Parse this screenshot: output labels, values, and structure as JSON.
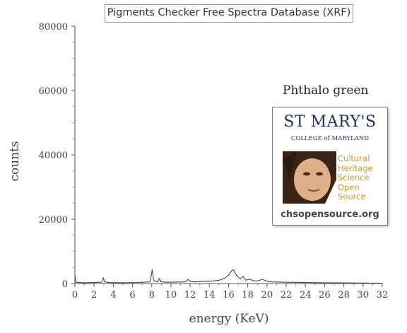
{
  "chart_data": {
    "type": "line",
    "title": "Pigments Checker Free Spectra Database (XRF)",
    "xlabel": "energy (KeV)",
    "ylabel": "counts",
    "xlim": [
      0,
      32
    ],
    "ylim": [
      0,
      80000
    ],
    "x_ticks": [
      "0",
      "2",
      "4",
      "6",
      "8",
      "10",
      "12",
      "14",
      "16",
      "18",
      "20",
      "22",
      "24",
      "26",
      "28",
      "30",
      "32"
    ],
    "y_ticks": [
      "0",
      "20000",
      "40000",
      "60000",
      "80000"
    ],
    "annotation": "Phthalo green",
    "grid": false,
    "series": [
      {
        "color": "#444444",
        "points": [
          [
            0.0,
            2500
          ],
          [
            0.1,
            400
          ],
          [
            0.5,
            300
          ],
          [
            1.0,
            250
          ],
          [
            2.0,
            300
          ],
          [
            2.8,
            400
          ],
          [
            2.95,
            1800
          ],
          [
            3.1,
            500
          ],
          [
            3.5,
            300
          ],
          [
            5.0,
            250
          ],
          [
            6.5,
            300
          ],
          [
            7.8,
            500
          ],
          [
            7.9,
            1500
          ],
          [
            8.05,
            4300
          ],
          [
            8.2,
            900
          ],
          [
            8.6,
            500
          ],
          [
            8.8,
            1600
          ],
          [
            8.95,
            600
          ],
          [
            9.5,
            400
          ],
          [
            11.5,
            500
          ],
          [
            11.8,
            1300
          ],
          [
            12.0,
            700
          ],
          [
            12.4,
            500
          ],
          [
            13.0,
            600
          ],
          [
            14.0,
            700
          ],
          [
            15.0,
            1000
          ],
          [
            15.6,
            1600
          ],
          [
            16.0,
            2600
          ],
          [
            16.3,
            3900
          ],
          [
            16.5,
            4300
          ],
          [
            16.8,
            2600
          ],
          [
            17.2,
            1400
          ],
          [
            17.5,
            2200
          ],
          [
            17.8,
            1000
          ],
          [
            18.2,
            1400
          ],
          [
            18.5,
            900
          ],
          [
            19.0,
            800
          ],
          [
            19.5,
            1300
          ],
          [
            20.0,
            700
          ],
          [
            20.5,
            500
          ],
          [
            22.0,
            400
          ],
          [
            24.0,
            300
          ],
          [
            26.0,
            250
          ],
          [
            28.0,
            200
          ],
          [
            30.0,
            150
          ],
          [
            32.0,
            100
          ]
        ]
      }
    ]
  },
  "logo": {
    "name": "ST MARY'S",
    "subtitle": "COLLEGE of MARYLAND",
    "words": [
      "Cultural",
      "Heritage",
      "Science",
      "Open",
      "Source"
    ],
    "url": "chsopensource.org"
  }
}
